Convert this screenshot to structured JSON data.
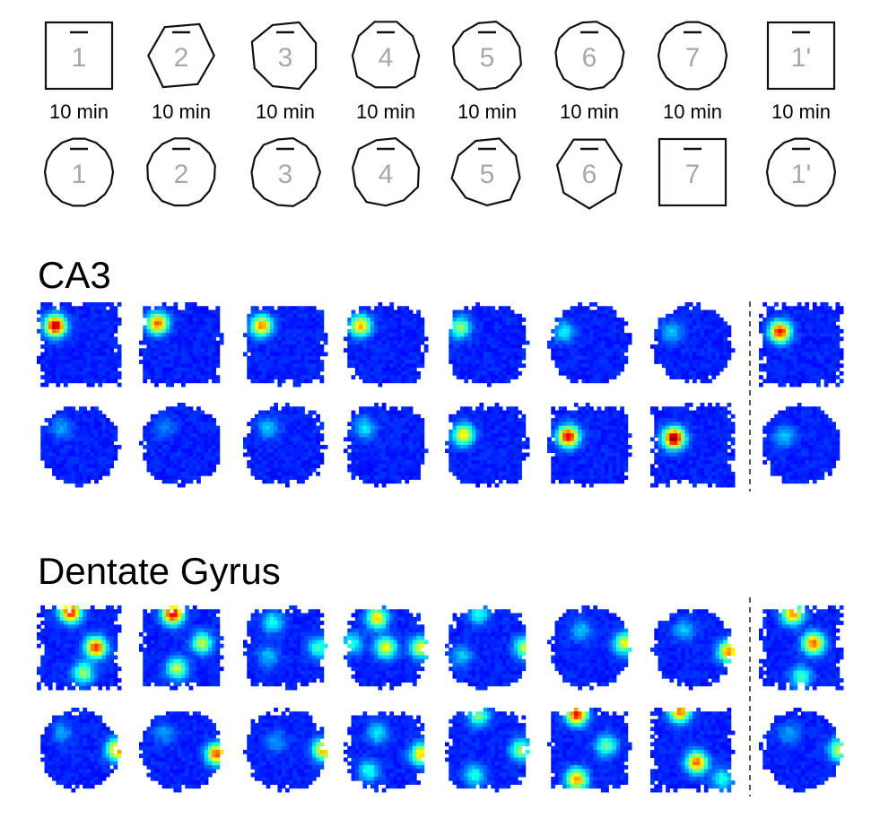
{
  "protocol": {
    "row1": {
      "labels": [
        "1",
        "2",
        "3",
        "4",
        "5",
        "6",
        "7",
        "1'"
      ],
      "shapes": [
        0,
        0.15,
        0.3,
        0.45,
        0.6,
        0.8,
        1,
        0
      ],
      "durations": [
        "10 min",
        "10 min",
        "10 min",
        "10 min",
        "10 min",
        "10 min",
        "10 min",
        "10 min"
      ]
    },
    "row2": {
      "labels": [
        "1",
        "2",
        "3",
        "4",
        "5",
        "6",
        "7",
        "1'"
      ],
      "shapes": [
        1,
        0.85,
        0.7,
        0.5,
        0.35,
        0.2,
        0,
        1
      ]
    }
  },
  "sections": {
    "ca3": {
      "title": "CA3",
      "rows": [
        {
          "shapes": [
            0,
            0.15,
            0.3,
            0.45,
            0.6,
            0.8,
            1,
            0
          ],
          "fields": [
            [
              [
                0.22,
                0.28,
                0.95
              ]
            ],
            [
              [
                0.22,
                0.25,
                0.75
              ]
            ],
            [
              [
                0.22,
                0.28,
                0.7
              ]
            ],
            [
              [
                0.2,
                0.28,
                0.65
              ]
            ],
            [
              [
                0.18,
                0.3,
                0.45
              ]
            ],
            [
              [
                0.2,
                0.35,
                0.25
              ]
            ],
            [
              [
                0.25,
                0.35,
                0.2
              ]
            ],
            [
              [
                0.25,
                0.35,
                0.85
              ]
            ]
          ]
        },
        {
          "shapes": [
            1,
            0.85,
            0.7,
            0.5,
            0.35,
            0.2,
            0,
            1
          ],
          "fields": [
            [
              [
                0.3,
                0.3,
                0.15
              ]
            ],
            [
              [
                0.3,
                0.3,
                0.12
              ]
            ],
            [
              [
                0.3,
                0.3,
                0.2
              ]
            ],
            [
              [
                0.25,
                0.3,
                0.25
              ]
            ],
            [
              [
                0.22,
                0.38,
                0.6
              ]
            ],
            [
              [
                0.25,
                0.4,
                0.9
              ]
            ],
            [
              [
                0.28,
                0.42,
                1.0
              ]
            ],
            [
              [
                0.3,
                0.4,
                0.2
              ]
            ]
          ]
        }
      ]
    },
    "dg": {
      "title": "Dentate Gyrus",
      "rows": [
        {
          "shapes": [
            0,
            0.15,
            0.3,
            0.45,
            0.6,
            0.8,
            1,
            0
          ],
          "fields": [
            [
              [
                0.4,
                0.08,
                0.85
              ],
              [
                0.7,
                0.5,
                0.8
              ],
              [
                0.55,
                0.8,
                0.45
              ]
            ],
            [
              [
                0.4,
                0.1,
                0.9
              ],
              [
                0.75,
                0.45,
                0.5
              ],
              [
                0.45,
                0.75,
                0.5
              ]
            ],
            [
              [
                0.35,
                0.2,
                0.3
              ],
              [
                0.9,
                0.5,
                0.35
              ],
              [
                0.3,
                0.6,
                0.2
              ]
            ],
            [
              [
                0.4,
                0.15,
                0.6
              ],
              [
                0.5,
                0.5,
                0.55
              ],
              [
                0.92,
                0.5,
                0.55
              ],
              [
                0.1,
                0.45,
                0.3
              ]
            ],
            [
              [
                0.4,
                0.1,
                0.3
              ],
              [
                0.95,
                0.5,
                0.5
              ],
              [
                0.2,
                0.6,
                0.2
              ]
            ],
            [
              [
                0.92,
                0.45,
                0.55
              ],
              [
                0.4,
                0.3,
                0.2
              ]
            ],
            [
              [
                0.93,
                0.55,
                0.7
              ],
              [
                0.4,
                0.3,
                0.2
              ]
            ],
            [
              [
                0.4,
                0.1,
                0.7
              ],
              [
                0.65,
                0.45,
                0.75
              ],
              [
                0.5,
                0.85,
                0.35
              ]
            ]
          ]
        },
        {
          "shapes": [
            1,
            0.85,
            0.7,
            0.5,
            0.35,
            0.2,
            0,
            1
          ],
          "fields": [
            [
              [
                0.95,
                0.5,
                0.7
              ],
              [
                0.3,
                0.3,
                0.15
              ]
            ],
            [
              [
                0.92,
                0.55,
                0.75
              ],
              [
                0.3,
                0.3,
                0.15
              ]
            ],
            [
              [
                0.95,
                0.5,
                0.65
              ],
              [
                0.4,
                0.4,
                0.15
              ]
            ],
            [
              [
                0.92,
                0.55,
                0.6
              ],
              [
                0.4,
                0.3,
                0.25
              ],
              [
                0.3,
                0.75,
                0.3
              ]
            ],
            [
              [
                0.4,
                0.1,
                0.4
              ],
              [
                0.9,
                0.5,
                0.45
              ],
              [
                0.35,
                0.8,
                0.3
              ]
            ],
            [
              [
                0.35,
                0.08,
                0.85
              ],
              [
                0.35,
                0.85,
                0.7
              ],
              [
                0.7,
                0.45,
                0.4
              ]
            ],
            [
              [
                0.35,
                0.05,
                0.7
              ],
              [
                0.55,
                0.65,
                0.75
              ],
              [
                0.85,
                0.85,
                0.3
              ]
            ],
            [
              [
                0.95,
                0.5,
                0.5
              ],
              [
                0.35,
                0.3,
                0.15
              ]
            ]
          ]
        }
      ]
    }
  }
}
